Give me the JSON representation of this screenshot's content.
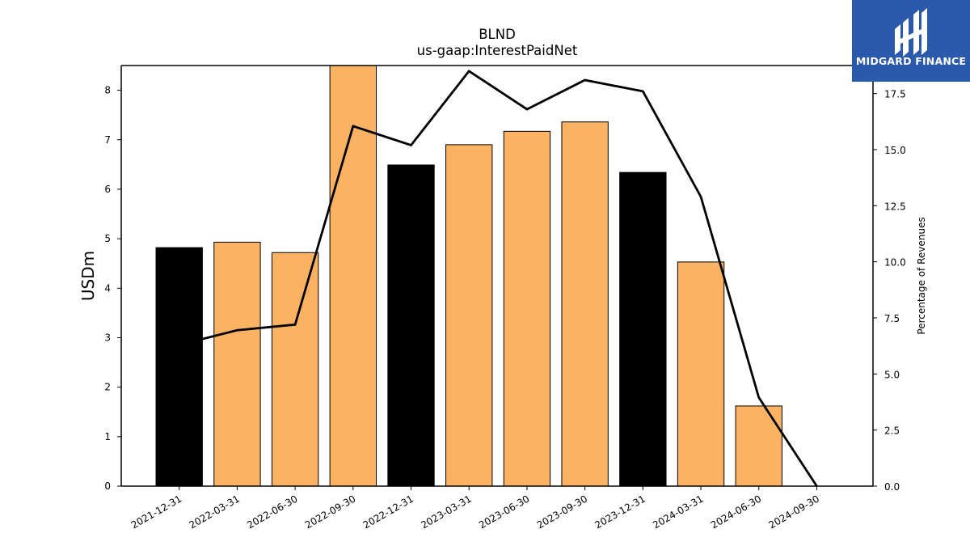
{
  "chart_data": {
    "type": "bar",
    "title": "BLND",
    "subtitle": "us-gaap:InterestPaidNet",
    "ylabel": "USDm",
    "y2label": "Percentage of Revenues",
    "categories": [
      "2021-12-31",
      "2022-03-31",
      "2022-06-30",
      "2022-09-30",
      "2022-12-31",
      "2023-03-31",
      "2023-06-30",
      "2023-09-30",
      "2023-12-31",
      "2024-03-31",
      "2024-06-30",
      "2024-09-30"
    ],
    "values": [
      4.82,
      4.93,
      4.72,
      8.5,
      6.49,
      6.9,
      7.17,
      7.36,
      6.34,
      4.53,
      1.62,
      null
    ],
    "bar_colors": [
      "#000000",
      "#fbb363",
      "#fbb363",
      "#fbb363",
      "#000000",
      "#fbb363",
      "#fbb363",
      "#fbb363",
      "#000000",
      "#fbb363",
      "#fbb363",
      "#fbb363"
    ],
    "line_series": {
      "name": "Percentage of Revenues",
      "values": [
        6.3,
        6.95,
        7.2,
        16.05,
        15.2,
        18.5,
        16.8,
        18.1,
        17.6,
        12.9,
        3.95,
        0.0
      ]
    },
    "ylim": [
      0,
      8.5
    ],
    "y2lim": [
      0,
      18.75
    ],
    "yticks": [
      0,
      1,
      2,
      3,
      4,
      5,
      6,
      7,
      8
    ],
    "y2ticks": [
      0.0,
      2.5,
      5.0,
      7.5,
      10.0,
      12.5,
      15.0,
      17.5
    ],
    "grid": false,
    "legend": "none"
  },
  "logo": {
    "text": "MIDGARD FINANCE",
    "background": "#2b5aad"
  }
}
